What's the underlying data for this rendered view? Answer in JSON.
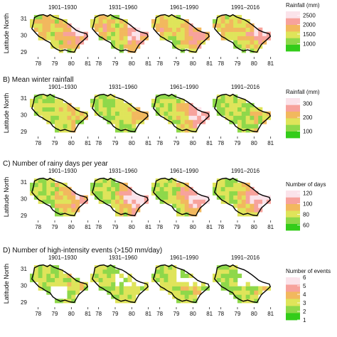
{
  "figure": {
    "ylabel": "Latitude North",
    "x_ticks": [
      "78",
      "79",
      "80",
      "81"
    ],
    "y_ticks": [
      "31",
      "30",
      "29"
    ]
  },
  "chart_data": [
    {
      "type": "heatmap",
      "panel_title": "",
      "periods": [
        "1901–1930",
        "1931–1960",
        "1961–1990",
        "1991–2016"
      ],
      "legend_title": "Rainfall (mm)",
      "legend_ticks": [
        "2500",
        "2000",
        "1500",
        "1000"
      ],
      "colors": [
        "#33cc1a",
        "#8ed84a",
        "#dfe45a",
        "#f2b85e",
        "#f7a29c",
        "#fbe3ea"
      ],
      "range": [
        600,
        2700
      ],
      "hotspot_strength": [
        0.55,
        0.6,
        0.5,
        0.5
      ],
      "xlim": [
        77.5,
        81.1
      ],
      "ylim": [
        28.7,
        31.5
      ]
    },
    {
      "type": "heatmap",
      "panel_title": "B) Mean winter rainfall",
      "periods": [
        "1901–1930",
        "1931–1960",
        "1961–1990",
        "1991–2016"
      ],
      "legend_title": "Rainfall (mm)",
      "legend_ticks": [
        "300",
        "200",
        "100"
      ],
      "colors": [
        "#33cc1a",
        "#8ed84a",
        "#dfe45a",
        "#f2b85e",
        "#f7a29c",
        "#fbe3ea"
      ],
      "range": [
        50,
        340
      ],
      "hotspot_strength": [
        0.2,
        0.3,
        0.65,
        0.15
      ],
      "xlim": [
        77.5,
        81.1
      ],
      "ylim": [
        28.7,
        31.5
      ]
    },
    {
      "type": "heatmap",
      "panel_title": "C) Number of rainy days per year",
      "periods": [
        "1901–1930",
        "1931–1960",
        "1961–1990",
        "1991–2016"
      ],
      "legend_title": "Number of days",
      "legend_ticks": [
        "120",
        "100",
        "80",
        "60"
      ],
      "colors": [
        "#33cc1a",
        "#8ed84a",
        "#dfe45a",
        "#f2b85e",
        "#f7a29c",
        "#fbe3ea"
      ],
      "range": [
        50,
        125
      ],
      "hotspot_strength": [
        0.45,
        0.7,
        0.75,
        0.7
      ],
      "xlim": [
        77.5,
        81.1
      ],
      "ylim": [
        28.7,
        31.5
      ]
    },
    {
      "type": "heatmap",
      "panel_title": "D) Number of high-intensity events (>150 mm/day)",
      "periods": [
        "1901–1930",
        "1931–1960",
        "1961–1990",
        "1991–2016"
      ],
      "legend_title": "Number of events",
      "legend_ticks": [
        "6",
        "5",
        "4",
        "3",
        "2",
        "1"
      ],
      "colors": [
        "#33cc1a",
        "#8ed84a",
        "#dfe45a",
        "#f2b85e",
        "#f7a29c",
        "#fbe3ea"
      ],
      "range": [
        1,
        6
      ],
      "hotspot_strength": [
        0.1,
        0.05,
        0.1,
        0.05
      ],
      "xlim": [
        77.5,
        81.1
      ],
      "ylim": [
        28.7,
        31.5
      ]
    }
  ]
}
